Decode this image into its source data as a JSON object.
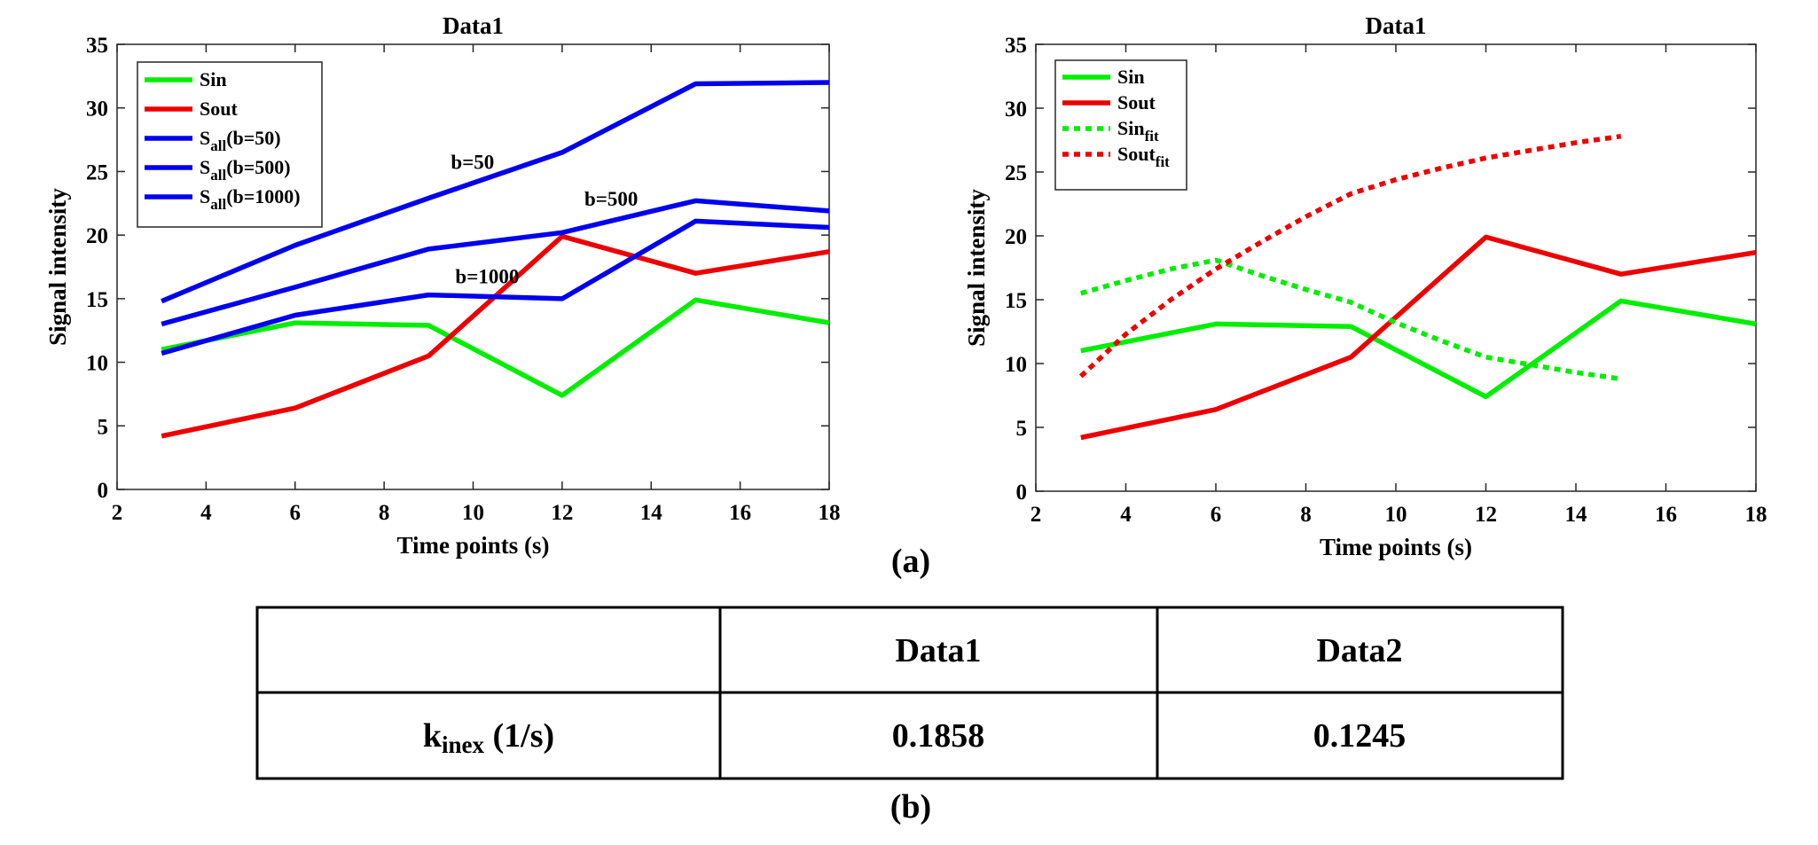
{
  "chart_data": [
    {
      "type": "line",
      "title": "Data1",
      "xlabel": "Time points (s)",
      "ylabel": "Signal intensity",
      "xlim": [
        2,
        18
      ],
      "ylim": [
        0,
        35
      ],
      "xticks": [
        2,
        4,
        6,
        8,
        10,
        12,
        14,
        16,
        18
      ],
      "yticks": [
        0,
        5,
        10,
        15,
        20,
        25,
        30,
        35
      ],
      "legend_position": "top-left",
      "series": [
        {
          "name": "Sin",
          "legend_main": "Sin",
          "legend_sub": "",
          "legend_tail": "",
          "color": "#00ee00",
          "dash": false,
          "x": [
            3,
            6,
            9,
            12,
            15,
            18
          ],
          "values": [
            11.0,
            13.1,
            12.9,
            7.4,
            14.9,
            13.1
          ]
        },
        {
          "name": "Sout",
          "legend_main": "Sout",
          "legend_sub": "",
          "legend_tail": "",
          "color": "#ee0000",
          "dash": false,
          "x": [
            3,
            6,
            9,
            12,
            15,
            18
          ],
          "values": [
            4.2,
            6.4,
            10.5,
            19.9,
            17.0,
            18.7
          ]
        },
        {
          "name": "Sall(b=50)",
          "legend_main": "S",
          "legend_sub": "all",
          "legend_tail": "(b=50)",
          "color": "#0000ee",
          "dash": false,
          "x": [
            3,
            6,
            9,
            12,
            15,
            18
          ],
          "values": [
            14.8,
            19.2,
            22.9,
            26.5,
            31.9,
            32.0
          ]
        },
        {
          "name": "Sall(b=500)",
          "legend_main": "S",
          "legend_sub": "all",
          "legend_tail": "(b=500)",
          "color": "#0000ee",
          "dash": false,
          "x": [
            3,
            6,
            9,
            12,
            15,
            18
          ],
          "values": [
            13.0,
            15.9,
            18.9,
            20.2,
            22.7,
            21.9
          ]
        },
        {
          "name": "Sall(b=1000)",
          "legend_main": "S",
          "legend_sub": "all",
          "legend_tail": "(b=1000)",
          "color": "#0000ee",
          "dash": false,
          "x": [
            3,
            6,
            9,
            12,
            15,
            18
          ],
          "values": [
            10.7,
            13.7,
            15.3,
            15.0,
            21.1,
            20.6
          ]
        }
      ],
      "annotations": [
        {
          "text": "b=50",
          "x": 9.5,
          "y": 25.2
        },
        {
          "text": "b=500",
          "x": 12.5,
          "y": 22.3
        },
        {
          "text": "b=1000",
          "x": 9.6,
          "y": 16.2
        }
      ]
    },
    {
      "type": "line",
      "title": "Data1",
      "xlabel": "Time points (s)",
      "ylabel": "Signal intensity",
      "xlim": [
        2,
        18
      ],
      "ylim": [
        0,
        35
      ],
      "xticks": [
        2,
        4,
        6,
        8,
        10,
        12,
        14,
        16,
        18
      ],
      "yticks": [
        0,
        5,
        10,
        15,
        20,
        25,
        30,
        35
      ],
      "legend_position": "top-left",
      "series": [
        {
          "name": "Sin",
          "legend_main": "Sin",
          "legend_sub": "",
          "legend_tail": "",
          "color": "#00ee00",
          "dash": false,
          "x": [
            3,
            6,
            9,
            12,
            15,
            18
          ],
          "values": [
            11.0,
            13.1,
            12.9,
            7.4,
            14.9,
            13.1
          ]
        },
        {
          "name": "Sout",
          "legend_main": "Sout",
          "legend_sub": "",
          "legend_tail": "",
          "color": "#ee0000",
          "dash": false,
          "x": [
            3,
            6,
            9,
            12,
            15,
            18
          ],
          "values": [
            4.2,
            6.4,
            10.5,
            19.9,
            17.0,
            18.7
          ]
        },
        {
          "name": "Sinfit",
          "legend_main": "Sin",
          "legend_sub": "fit",
          "legend_tail": "",
          "color": "#00ee00",
          "dash": true,
          "x": [
            3,
            4,
            5,
            6,
            7,
            8,
            9,
            10,
            11,
            12,
            13,
            14,
            15
          ],
          "values": [
            15.5,
            16.5,
            17.4,
            18.1,
            16.9,
            15.8,
            14.8,
            13.2,
            11.8,
            10.5,
            9.9,
            9.3,
            8.8
          ]
        },
        {
          "name": "Soutfit",
          "legend_main": "Sout",
          "legend_sub": "fit",
          "legend_tail": "",
          "color": "#ee0000",
          "dash": true,
          "x": [
            3,
            4,
            5,
            6,
            7,
            8,
            9,
            10,
            11,
            12,
            13,
            14,
            15
          ],
          "values": [
            9.0,
            12.3,
            15.0,
            17.4,
            19.5,
            21.5,
            23.3,
            24.4,
            25.3,
            26.1,
            26.7,
            27.3,
            27.8
          ]
        }
      ],
      "annotations": []
    }
  ],
  "panel_labels": {
    "a": "(a)",
    "b": "(b)"
  },
  "table": {
    "headers": [
      "",
      "Data1",
      "Data2"
    ],
    "row_label_main": "k",
    "row_label_sub": "inex",
    "row_label_tail": " (1/s)",
    "values": [
      "0.1858",
      "0.1245"
    ]
  }
}
